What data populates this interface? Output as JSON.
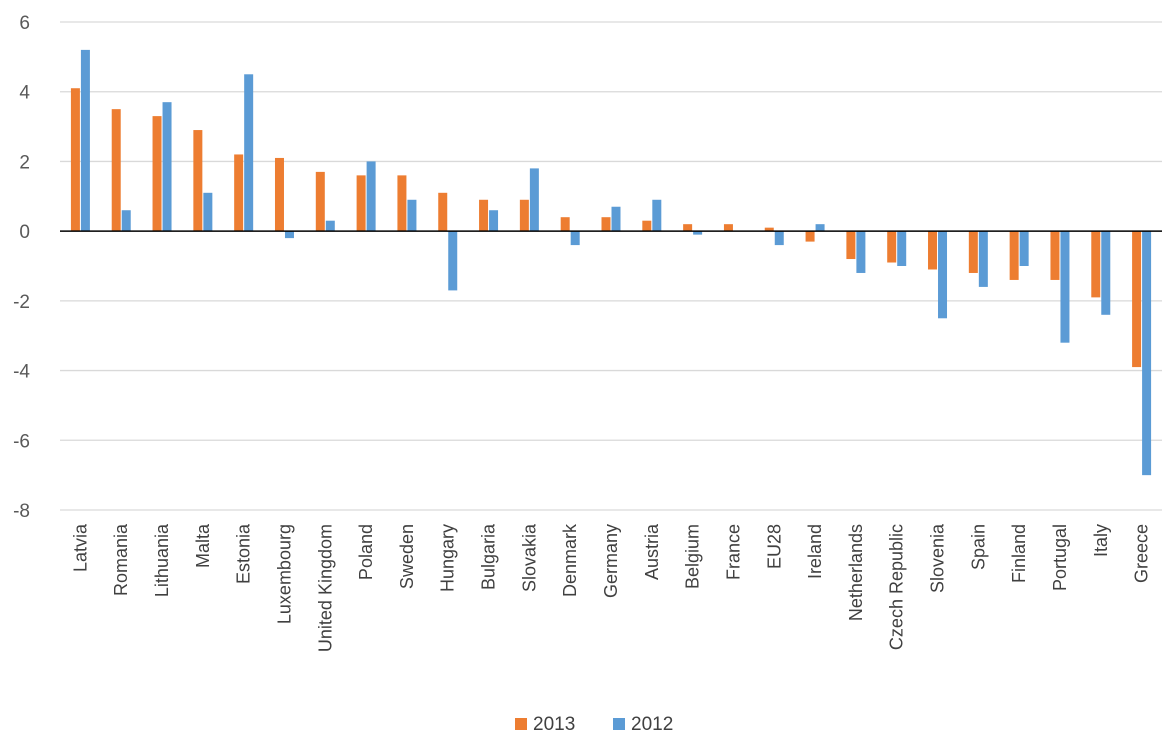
{
  "chart_data": {
    "type": "bar",
    "categories": [
      "Latvia",
      "Romania",
      "Lithuania",
      "Malta",
      "Estonia",
      "Luxembourg",
      "United Kingdom",
      "Poland",
      "Sweden",
      "Hungary",
      "Bulgaria",
      "Slovakia",
      "Denmark",
      "Germany",
      "Austria",
      "Belgium",
      "France",
      "EU28",
      "Ireland",
      "Netherlands",
      "Czech Republic",
      "Slovenia",
      "Spain",
      "Finland",
      "Portugal",
      "Italy",
      "Greece"
    ],
    "series": [
      {
        "name": "2013",
        "color": "#ED7D31",
        "values": [
          4.1,
          3.5,
          3.3,
          2.9,
          2.2,
          2.1,
          1.7,
          1.6,
          1.6,
          1.1,
          0.9,
          0.9,
          0.4,
          0.4,
          0.3,
          0.2,
          0.2,
          0.1,
          -0.3,
          -0.8,
          -0.9,
          -1.1,
          -1.2,
          -1.4,
          -1.4,
          -1.9,
          -3.9
        ]
      },
      {
        "name": "2012",
        "color": "#5B9BD5",
        "values": [
          5.2,
          0.6,
          3.7,
          1.1,
          4.5,
          -0.2,
          0.3,
          2.0,
          0.9,
          -1.7,
          0.6,
          1.8,
          -0.4,
          0.7,
          0.9,
          -0.1,
          0.0,
          -0.4,
          0.2,
          -1.2,
          -1.0,
          -2.5,
          -1.6,
          -1.0,
          -3.2,
          -2.4,
          -7.0
        ]
      }
    ],
    "ylim": [
      -8,
      6
    ],
    "yticks": [
      -8,
      -6,
      -4,
      -2,
      0,
      2,
      4,
      6
    ],
    "title": "",
    "xlabel": "",
    "ylabel": "",
    "grid": true,
    "legend": "bottom"
  }
}
